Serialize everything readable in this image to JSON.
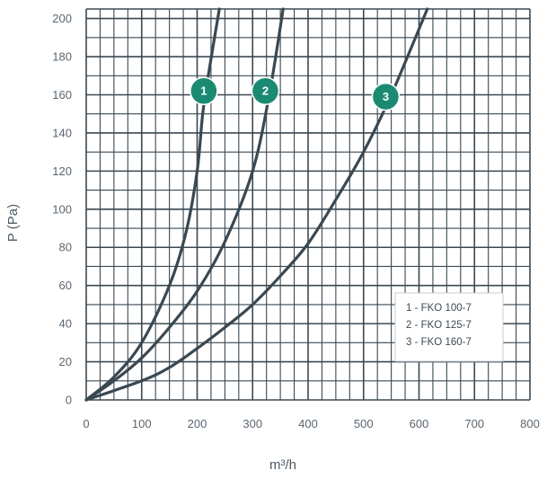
{
  "chart_data": {
    "type": "line",
    "xlabel": "m³/h",
    "ylabel": "P (Pa)",
    "xlim": [
      0,
      800
    ],
    "ylim": [
      0,
      205
    ],
    "x_ticks": [
      "0",
      "100",
      "200",
      "300",
      "400",
      "500",
      "600",
      "700",
      "800"
    ],
    "y_ticks": [
      "0",
      "20",
      "40",
      "60",
      "80",
      "100",
      "120",
      "140",
      "160",
      "180",
      "200"
    ],
    "grid": true,
    "legend_position": "bottom-right",
    "colors": {
      "curve": "#3a4852",
      "grid": "#3a4852",
      "badge": "#1a8a72",
      "text": "#5a6670"
    },
    "series": [
      {
        "name": "1 - FKO 100-7",
        "badge": "1",
        "x": [
          0,
          50,
          100,
          150,
          180,
          200,
          210,
          220,
          240
        ],
        "y": [
          0,
          12,
          30,
          60,
          88,
          120,
          150,
          170,
          205
        ]
      },
      {
        "name": "2 - FKO 125-7",
        "badge": "2",
        "x": [
          0,
          50,
          100,
          150,
          200,
          250,
          300,
          330,
          355
        ],
        "y": [
          0,
          10,
          22,
          38,
          57,
          83,
          120,
          160,
          205
        ]
      },
      {
        "name": "3 - FKO 160-7",
        "badge": "3",
        "x": [
          0,
          100,
          150,
          200,
          250,
          300,
          350,
          400,
          450,
          500,
          550,
          615
        ],
        "y": [
          0,
          10,
          17,
          27,
          38,
          50,
          65,
          82,
          105,
          130,
          160,
          205
        ]
      }
    ],
    "badges": [
      {
        "label": "1",
        "x": 212,
        "y": 162
      },
      {
        "label": "2",
        "x": 323,
        "y": 162
      },
      {
        "label": "3",
        "x": 540,
        "y": 159
      }
    ]
  }
}
